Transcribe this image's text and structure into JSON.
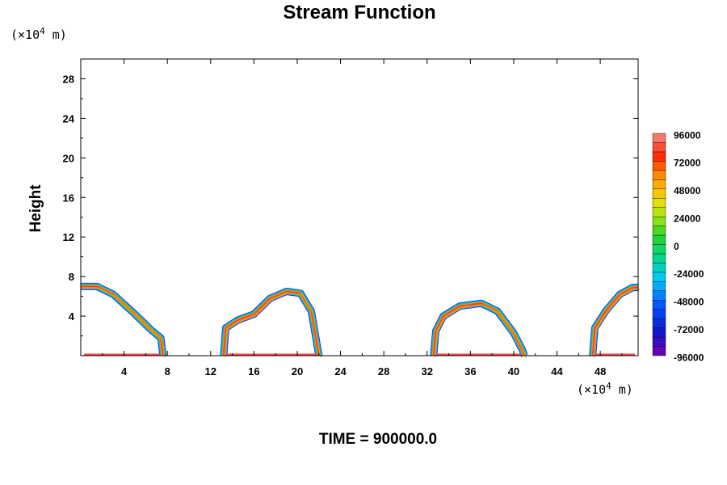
{
  "chart_data": {
    "type": "contour",
    "title": "Stream Function",
    "ylabel": "Height",
    "xlabel": "",
    "x_unit_prefix": "(×10",
    "x_unit_exp": "4",
    "x_unit_suffix": " m)",
    "y_unit_prefix": "(×10",
    "y_unit_exp": "4",
    "y_unit_suffix": " m)",
    "xlim": [
      0,
      51.5
    ],
    "ylim": [
      0,
      30
    ],
    "x_ticks": [
      4,
      8,
      12,
      16,
      20,
      24,
      28,
      32,
      36,
      40,
      44,
      48
    ],
    "y_ticks": [
      4,
      8,
      12,
      16,
      20,
      24,
      28
    ],
    "colorbar": {
      "min": -96000,
      "max": 96000,
      "levels": 24,
      "tick_values": [
        96000,
        72000,
        48000,
        24000,
        0,
        -24000,
        -48000,
        -72000,
        -96000
      ],
      "tick_labels": [
        "96000",
        "72000",
        "48000",
        "24000",
        "0",
        "-24000",
        "-48000",
        "-72000",
        "-96000"
      ]
    },
    "cells": [
      {
        "name": "cell-1",
        "outline": [
          [
            0,
            7.0
          ],
          [
            1.5,
            7.0
          ],
          [
            3,
            6.2
          ],
          [
            5,
            4.2
          ],
          [
            6.5,
            2.6
          ],
          [
            7.4,
            1.8
          ],
          [
            7.6,
            0
          ]
        ]
      },
      {
        "name": "cell-2",
        "outline": [
          [
            13.2,
            0
          ],
          [
            13.4,
            2.8
          ],
          [
            14.5,
            3.6
          ],
          [
            16,
            4.2
          ],
          [
            17.5,
            5.8
          ],
          [
            19,
            6.5
          ],
          [
            20.3,
            6.3
          ],
          [
            21.3,
            4.5
          ],
          [
            22.0,
            0
          ]
        ]
      },
      {
        "name": "cell-3",
        "outline": [
          [
            32.6,
            0
          ],
          [
            32.8,
            2.5
          ],
          [
            33.5,
            4.0
          ],
          [
            35,
            5.0
          ],
          [
            37,
            5.3
          ],
          [
            38.5,
            4.5
          ],
          [
            40,
            2.3
          ],
          [
            40.8,
            0.6
          ],
          [
            41.0,
            0
          ]
        ]
      },
      {
        "name": "cell-4",
        "outline": [
          [
            47.3,
            0
          ],
          [
            47.5,
            2.8
          ],
          [
            48.5,
            4.5
          ],
          [
            49.8,
            6.2
          ],
          [
            51.0,
            6.9
          ],
          [
            51.5,
            6.9
          ]
        ]
      }
    ],
    "grid": false
  },
  "footer": {
    "time_label": "TIME = 900000.0"
  },
  "colors": {
    "background": "#ffffff",
    "frame": "#000000",
    "outer_contour": "#e8a000",
    "inner_contour": "#ff4040"
  }
}
